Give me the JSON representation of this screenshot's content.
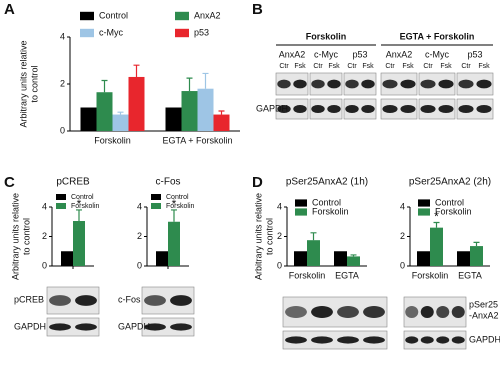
{
  "panels": [
    "A",
    "B",
    "C",
    "D"
  ],
  "chart_data": [
    {
      "type": "bar",
      "ylabel": [
        "Arbitrary units relative",
        "to control"
      ],
      "categories": [
        "Forskolin",
        "EGTA + Forskolin"
      ],
      "series": [
        {
          "name": "Control",
          "color": "#000000",
          "values": [
            1,
            1
          ],
          "errors": [
            null,
            null
          ],
          "stars": [
            null,
            null
          ]
        },
        {
          "name": "AnxA2",
          "color": "#2e8b4e",
          "values": [
            1.65,
            1.7
          ],
          "errors": [
            0.5,
            0.55
          ],
          "stars": [
            null,
            null
          ]
        },
        {
          "name": "c-Myc",
          "color": "#9ec5e5",
          "values": [
            0.7,
            1.8
          ],
          "errors": [
            0.1,
            0.65
          ],
          "stars": [
            null,
            null
          ]
        },
        {
          "name": "p53",
          "color": "#e8262d",
          "values": [
            2.3,
            0.7
          ],
          "errors": [
            0.5,
            0.15
          ],
          "stars": [
            null,
            null
          ]
        }
      ],
      "ylim": [
        0,
        4
      ],
      "yticks": [
        0,
        2,
        4
      ],
      "legend": "top"
    },
    {
      "type": "bar",
      "title": "pCREB",
      "ylabel": [
        "Arbitrary units relative",
        "to control"
      ],
      "categories": [
        null
      ],
      "series": [
        {
          "name": "Control",
          "color": "#000000",
          "values": [
            1
          ],
          "errors": [
            null
          ],
          "stars": [
            null
          ]
        },
        {
          "name": "Forskolin",
          "color": "#2e8b4e",
          "values": [
            3.05
          ],
          "errors": [
            0.75
          ],
          "stars": [
            "*"
          ]
        }
      ],
      "ylim": [
        0,
        4
      ],
      "yticks": [
        0,
        2,
        4
      ],
      "legend": "top-left"
    },
    {
      "type": "bar",
      "title": "c-Fos",
      "categories": [
        null
      ],
      "series": [
        {
          "name": "Control",
          "color": "#000000",
          "values": [
            1
          ],
          "errors": [
            null
          ],
          "stars": [
            null
          ]
        },
        {
          "name": "Forskolin",
          "color": "#2e8b4e",
          "values": [
            3.0
          ],
          "errors": [
            0.8
          ],
          "stars": [
            "*"
          ]
        }
      ],
      "ylim": [
        0,
        4
      ],
      "yticks": [
        0,
        2,
        4
      ],
      "legend": "top-left"
    },
    {
      "type": "bar",
      "title": "pSer25AnxA2 (1h)",
      "ylabel": [
        "Arbitrary units relative",
        "to control"
      ],
      "categories": [
        "Forskolin",
        "EGTA"
      ],
      "series": [
        {
          "name": "Control",
          "color": "#000000",
          "values": [
            1,
            1
          ],
          "errors": [
            null,
            null
          ],
          "stars": [
            null,
            null
          ]
        },
        {
          "name": "Forskolin",
          "color": "#2e8b4e",
          "values": [
            1.75,
            0.65
          ],
          "errors": [
            0.5,
            0.1
          ],
          "stars": [
            null,
            null
          ]
        }
      ],
      "ylim": [
        0,
        4
      ],
      "yticks": [
        0,
        2,
        4
      ],
      "legend": "top-left"
    },
    {
      "type": "bar",
      "title": "pSer25AnxA2 (2h)",
      "categories": [
        "Forskolin",
        "EGTA"
      ],
      "series": [
        {
          "name": "Control",
          "color": "#000000",
          "values": [
            1,
            1
          ],
          "errors": [
            null,
            null
          ],
          "stars": [
            null,
            null
          ]
        },
        {
          "name": "Forskolin",
          "color": "#2e8b4e",
          "values": [
            2.6,
            1.35
          ],
          "errors": [
            0.35,
            0.25
          ],
          "stars": [
            "*",
            null
          ]
        }
      ],
      "ylim": [
        0,
        4
      ],
      "yticks": [
        0,
        2,
        4
      ],
      "legend": "top-left"
    }
  ],
  "blot_B": {
    "groups": [
      "Forskolin",
      "EGTA + Forskolin"
    ],
    "proteins": [
      "AnxA2",
      "c-Myc",
      "p53"
    ],
    "lanes": [
      "Ctr",
      "Fsk"
    ],
    "loading": "GAPDH"
  },
  "blot_C": [
    {
      "label": "pCREB",
      "loading": "GAPDH"
    },
    {
      "label": "c-Fos",
      "loading": "GAPDH"
    }
  ],
  "blot_D": {
    "label": [
      "pSer25",
      "-AnxA2"
    ],
    "loading": "GAPDH"
  }
}
